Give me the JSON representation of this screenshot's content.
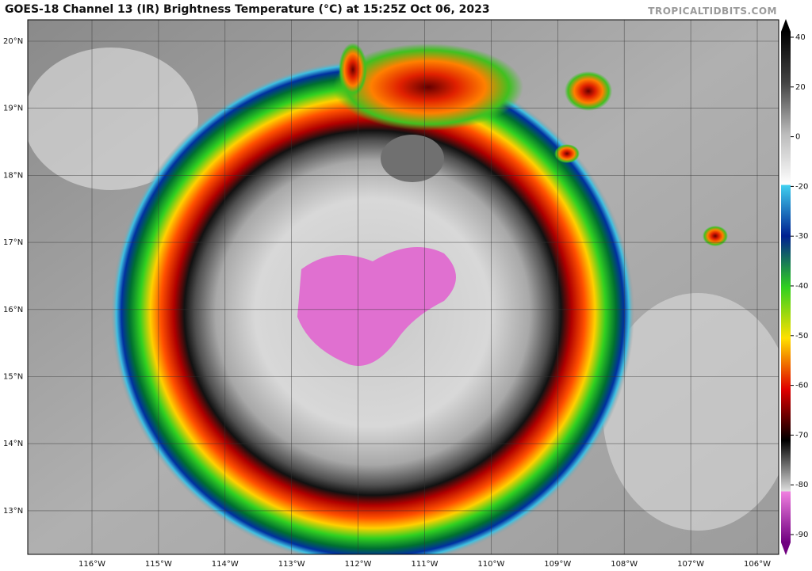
{
  "header": {
    "title": "GOES-18 Channel 13 (IR) Brightness Temperature (°C) at 15:25Z Oct 06, 2023",
    "credit": "TROPICALTIDBITS.COM"
  },
  "map": {
    "lat_labels": [
      "20°N",
      "19°N",
      "18°N",
      "17°N",
      "16°N",
      "15°N",
      "14°N",
      "13°N"
    ],
    "lon_labels": [
      "116°W",
      "115°W",
      "114°W",
      "113°W",
      "112°W",
      "111°W",
      "110°W",
      "109°W",
      "108°W",
      "107°W",
      "106°W"
    ]
  },
  "colorbar": {
    "ticks": [
      40,
      20,
      0,
      -20,
      -30,
      -40,
      -50,
      -60,
      -70,
      -80,
      -90
    ]
  }
}
